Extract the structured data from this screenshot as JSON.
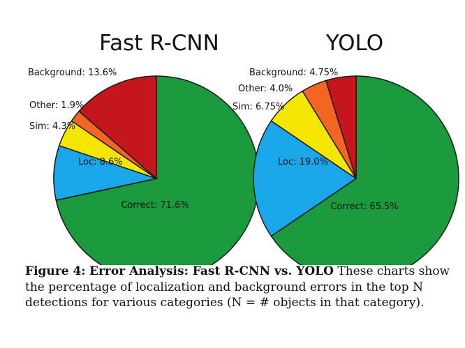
{
  "chart_data": [
    {
      "type": "pie",
      "title": "Fast R-CNN",
      "slices": [
        {
          "name": "Correct",
          "value": 71.6,
          "label": "Correct: 71.6%",
          "color": "#1a9a3c"
        },
        {
          "name": "Loc",
          "value": 8.6,
          "label": "Loc: 8.6%",
          "color": "#1aa7ea"
        },
        {
          "name": "Sim",
          "value": 4.3,
          "label": "Sim: 4.3%",
          "color": "#f5e600"
        },
        {
          "name": "Other",
          "value": 1.9,
          "label": "Other: 1.9%",
          "color": "#f26522"
        },
        {
          "name": "Background",
          "value": 13.6,
          "label": "Background: 13.6%",
          "color": "#c4161c"
        }
      ]
    },
    {
      "type": "pie",
      "title": "YOLO",
      "slices": [
        {
          "name": "Correct",
          "value": 65.5,
          "label": "Correct: 65.5%",
          "color": "#1a9a3c"
        },
        {
          "name": "Loc",
          "value": 19.0,
          "label": "Loc: 19.0%",
          "color": "#1aa7ea"
        },
        {
          "name": "Sim",
          "value": 6.75,
          "label": "Sim: 6.75%",
          "color": "#f5e600"
        },
        {
          "name": "Other",
          "value": 4.0,
          "label": "Other: 4.0%",
          "color": "#f26522"
        },
        {
          "name": "Background",
          "value": 4.75,
          "label": "Background: 4.75%",
          "color": "#c4161c"
        }
      ]
    }
  ],
  "caption": {
    "label": "Figure 4:",
    "title": "Error Analysis: Fast R-CNN vs. YOLO",
    "text": "These charts show the percentage of localization and background errors in the top N detections for various categories (N = # objects in that category)."
  }
}
